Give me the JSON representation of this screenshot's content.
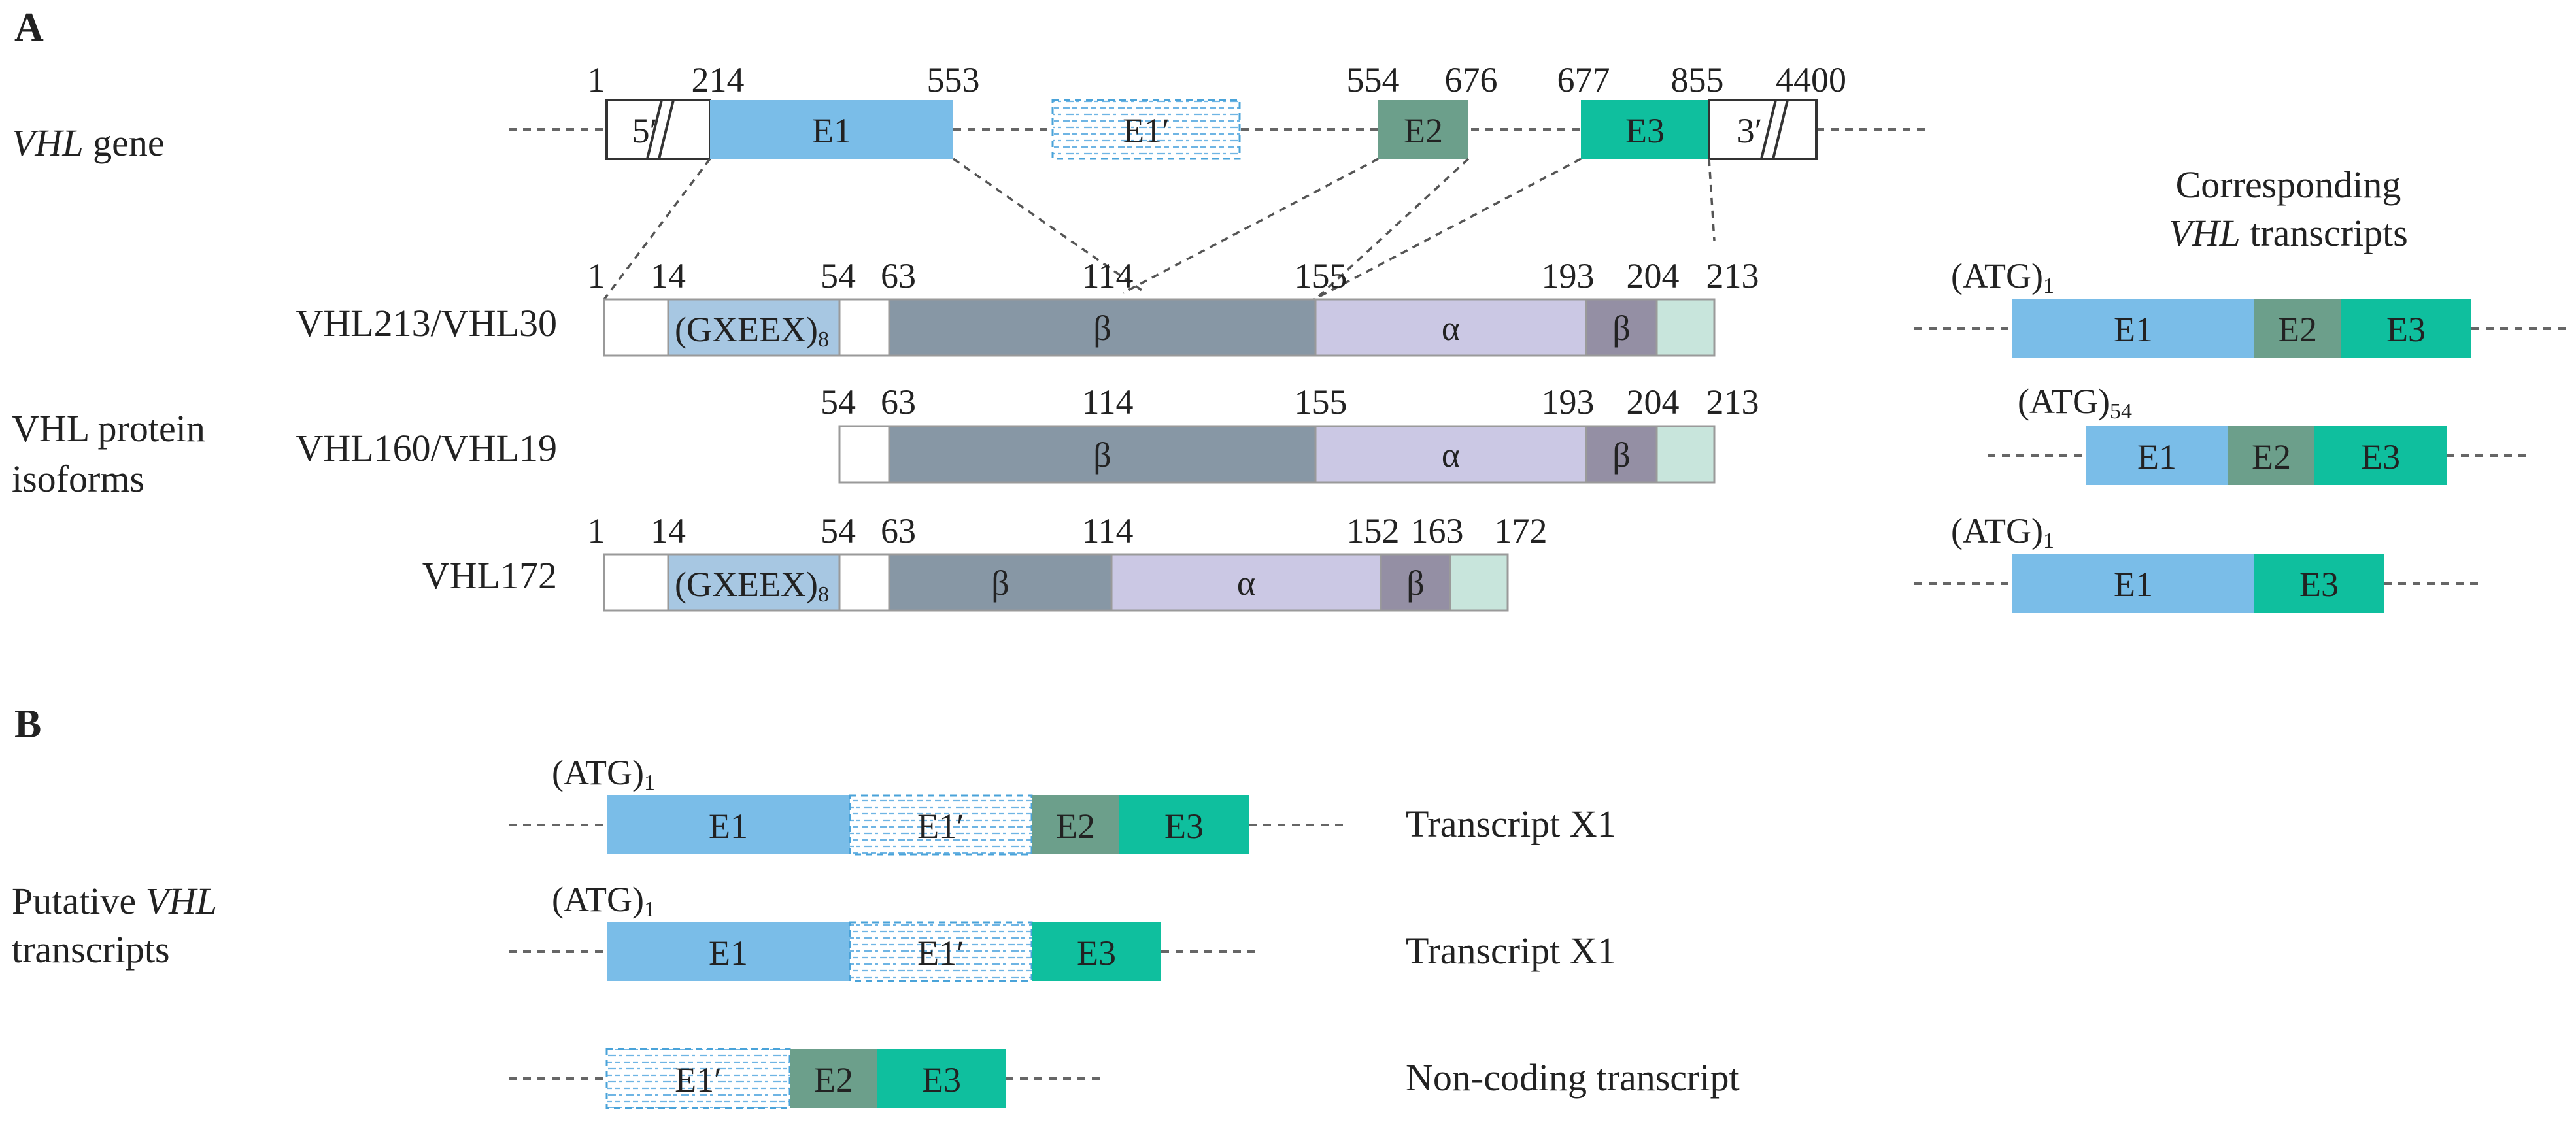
{
  "colors": {
    "e1": "#7abde8",
    "e2": "#6c9f8b",
    "e3": "#0fbf9e",
    "beta": "#8797a5",
    "alpha": "#cbc8e4",
    "beta_small": "#948fa4",
    "tail": "#c8e5dc",
    "gxeex": "#a7c7e2"
  },
  "panel_a": {
    "panel_label": "A",
    "gene": {
      "label_italic": "VHL",
      "label_rest": " gene",
      "positions": [
        "1",
        "214",
        "553",
        "554",
        "676",
        "677",
        "855",
        "4400"
      ],
      "utr5": "5′",
      "utr3": "3′",
      "exons": [
        "E1",
        "E1′",
        "E2",
        "E3"
      ]
    },
    "side_heading": {
      "line1": "Corresponding",
      "line2_italic": "VHL",
      "line2_rest": " transcripts"
    },
    "group_label": {
      "line1": "VHL protein",
      "line2": "isoforms"
    },
    "isoforms": [
      {
        "name": "VHL213/VHL30",
        "positions": [
          "1",
          "14",
          "54",
          "63",
          "114",
          "155",
          "193",
          "204",
          "213"
        ],
        "domains": [
          "(GXEEX)",
          "8",
          "β",
          "α",
          "β"
        ]
      },
      {
        "name": "VHL160/VHL19",
        "positions": [
          "54",
          "63",
          "114",
          "155",
          "193",
          "204",
          "213"
        ],
        "domains": [
          "β",
          "α",
          "β"
        ]
      },
      {
        "name": "VHL172",
        "positions": [
          "1",
          "14",
          "54",
          "63",
          "114",
          "152",
          "163",
          "172"
        ],
        "domains": [
          "(GXEEX)",
          "8",
          "β",
          "α",
          "β"
        ]
      }
    ],
    "transcripts": [
      {
        "atg": "(ATG)",
        "atg_sub": "1",
        "exons": [
          "E1",
          "E2",
          "E3"
        ]
      },
      {
        "atg": "(ATG)",
        "atg_sub": "54",
        "exons": [
          "E1",
          "E2",
          "E3"
        ]
      },
      {
        "atg": "(ATG)",
        "atg_sub": "1",
        "exons": [
          "E1",
          "E3"
        ]
      }
    ]
  },
  "panel_b": {
    "panel_label": "B",
    "group_label": {
      "line1_pre": "Putative ",
      "line1_italic": "VHL",
      "line2": "transcripts"
    },
    "transcripts": [
      {
        "atg": "(ATG)",
        "atg_sub": "1",
        "exons": [
          "E1",
          "E1′",
          "E2",
          "E3"
        ],
        "name": "Transcript X1"
      },
      {
        "atg": "(ATG)",
        "atg_sub": "1",
        "exons": [
          "E1",
          "E1′",
          "E3"
        ],
        "name": "Transcript X1"
      },
      {
        "exons": [
          "E1′",
          "E2",
          "E3"
        ],
        "name": "Non-coding transcript"
      }
    ]
  }
}
